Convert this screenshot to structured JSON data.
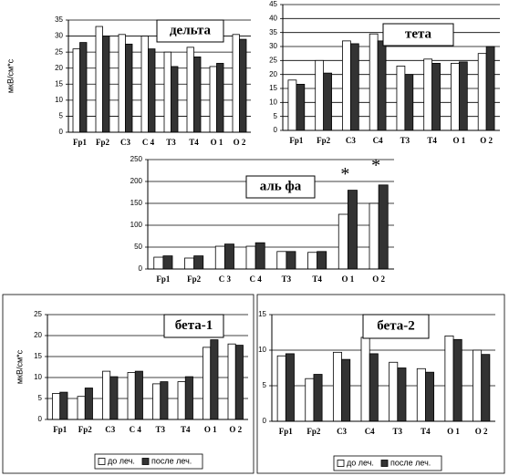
{
  "chart_data": [
    {
      "type": "bar",
      "title": "дельта",
      "ylabel": "мкВ/см*с",
      "categories": [
        "Fp1",
        "Fp2",
        "C3",
        "C 4",
        "T3",
        "T4",
        "O 1",
        "O 2"
      ],
      "series": [
        {
          "name": "до леч.",
          "color": "#ffffff",
          "values": [
            26,
            33,
            30.5,
            30,
            25,
            26.5,
            20.5,
            30.5
          ]
        },
        {
          "name": "после леч.",
          "color": "#333333",
          "values": [
            28,
            30,
            27.5,
            26,
            20.5,
            23.5,
            21.5,
            29
          ]
        }
      ],
      "ylim": [
        0,
        35
      ],
      "yticks": [
        0,
        5,
        10,
        15,
        20,
        25,
        30,
        35
      ],
      "grid": true,
      "legend": false
    },
    {
      "type": "bar",
      "title": "тета",
      "categories": [
        "Fp1",
        "Fp2",
        "C3",
        "C4",
        "T3",
        "T4",
        "O 1",
        "O 2"
      ],
      "series": [
        {
          "name": "до леч.",
          "color": "#ffffff",
          "values": [
            18,
            25,
            32,
            34.5,
            23,
            25.5,
            24,
            27.5
          ]
        },
        {
          "name": "после леч.",
          "color": "#333333",
          "values": [
            16.5,
            20.5,
            31,
            32,
            20,
            24,
            24.5,
            30
          ]
        }
      ],
      "ylim": [
        0,
        45
      ],
      "yticks": [
        0,
        5,
        10,
        15,
        20,
        25,
        30,
        35,
        40,
        45
      ],
      "grid": true,
      "legend": false
    },
    {
      "type": "bar",
      "title": "аль фа",
      "categories": [
        "Fp1",
        "Fp2",
        "C 3",
        "C 4",
        "T3",
        "T4",
        "O 1",
        "O 2"
      ],
      "series": [
        {
          "name": "до леч.",
          "color": "#ffffff",
          "values": [
            27,
            25,
            52,
            52,
            40,
            38,
            125,
            150
          ]
        },
        {
          "name": "после леч.",
          "color": "#333333",
          "values": [
            30,
            30,
            57,
            60,
            40,
            40,
            180,
            192
          ]
        }
      ],
      "annotations": [
        "*",
        "*"
      ],
      "ylim": [
        0,
        250
      ],
      "yticks": [
        0,
        50,
        100,
        150,
        200,
        250
      ],
      "grid": true,
      "legend": false
    },
    {
      "type": "bar",
      "title": "бета-1",
      "ylabel": "мкВ/см*с",
      "categories": [
        "Fp1",
        "Fp2",
        "C3",
        "C 4",
        "T3",
        "T4",
        "O 1",
        "O 2"
      ],
      "series": [
        {
          "name": "до леч.",
          "color": "#ffffff",
          "values": [
            6.2,
            5.5,
            11.5,
            11.2,
            8.5,
            9,
            17.2,
            18
          ]
        },
        {
          "name": "после леч.",
          "color": "#333333",
          "values": [
            6.5,
            7.5,
            10.2,
            11.5,
            9,
            10.2,
            19,
            17.7
          ]
        }
      ],
      "ylim": [
        0,
        25
      ],
      "yticks": [
        0,
        5,
        10,
        15,
        20,
        25
      ],
      "grid": true,
      "legend": true
    },
    {
      "type": "bar",
      "title": "бета-2",
      "categories": [
        "Fp1",
        "Fp2",
        "C3",
        "C4",
        "T3",
        "T4",
        "O 1",
        "O 2"
      ],
      "series": [
        {
          "name": "до леч.",
          "color": "#ffffff",
          "values": [
            9.2,
            6,
            9.7,
            11.8,
            8.3,
            7.4,
            12,
            10
          ]
        },
        {
          "name": "после леч.",
          "color": "#333333",
          "values": [
            9.5,
            6.6,
            8.7,
            9.5,
            7.5,
            6.9,
            11.5,
            9.4
          ]
        }
      ],
      "ylim": [
        0,
        15
      ],
      "yticks": [
        0,
        5,
        10,
        15
      ],
      "grid": true,
      "legend": true
    }
  ]
}
